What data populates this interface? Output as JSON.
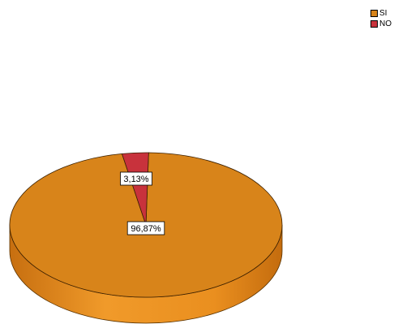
{
  "chart_data": {
    "type": "pie",
    "style": "3d",
    "categories": [
      "SI",
      "NO"
    ],
    "values": [
      96.87,
      3.13
    ],
    "data_labels": [
      "96,87%",
      "3,13%"
    ],
    "colors": [
      "#d8841a",
      "#c8323c"
    ],
    "legend": {
      "placement": "top-right",
      "entries": [
        "SI",
        "NO"
      ]
    }
  }
}
